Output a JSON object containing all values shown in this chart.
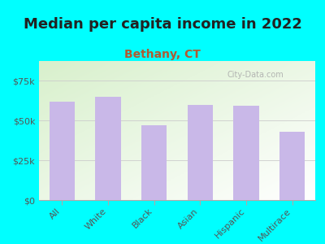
{
  "title": "Median per capita income in 2022",
  "subtitle": "Bethany, CT",
  "categories": [
    "All",
    "White",
    "Black",
    "Asian",
    "Hispanic",
    "Multirace"
  ],
  "values": [
    62000,
    65000,
    47000,
    60000,
    59500,
    43000
  ],
  "bar_color": "#c9b8e8",
  "title_fontsize": 13,
  "title_color": "#222222",
  "subtitle_fontsize": 10,
  "subtitle_color": "#b05a30",
  "tick_label_color": "#555555",
  "ytick_label_color": "#555555",
  "background_color": "#00FFFF",
  "plot_bg_topleft": "#d8f0cc",
  "plot_bg_bottomright": "#ffffff",
  "ylim": [
    0,
    87500
  ],
  "yticks": [
    0,
    25000,
    50000,
    75000
  ],
  "watermark": "City-Data.com"
}
